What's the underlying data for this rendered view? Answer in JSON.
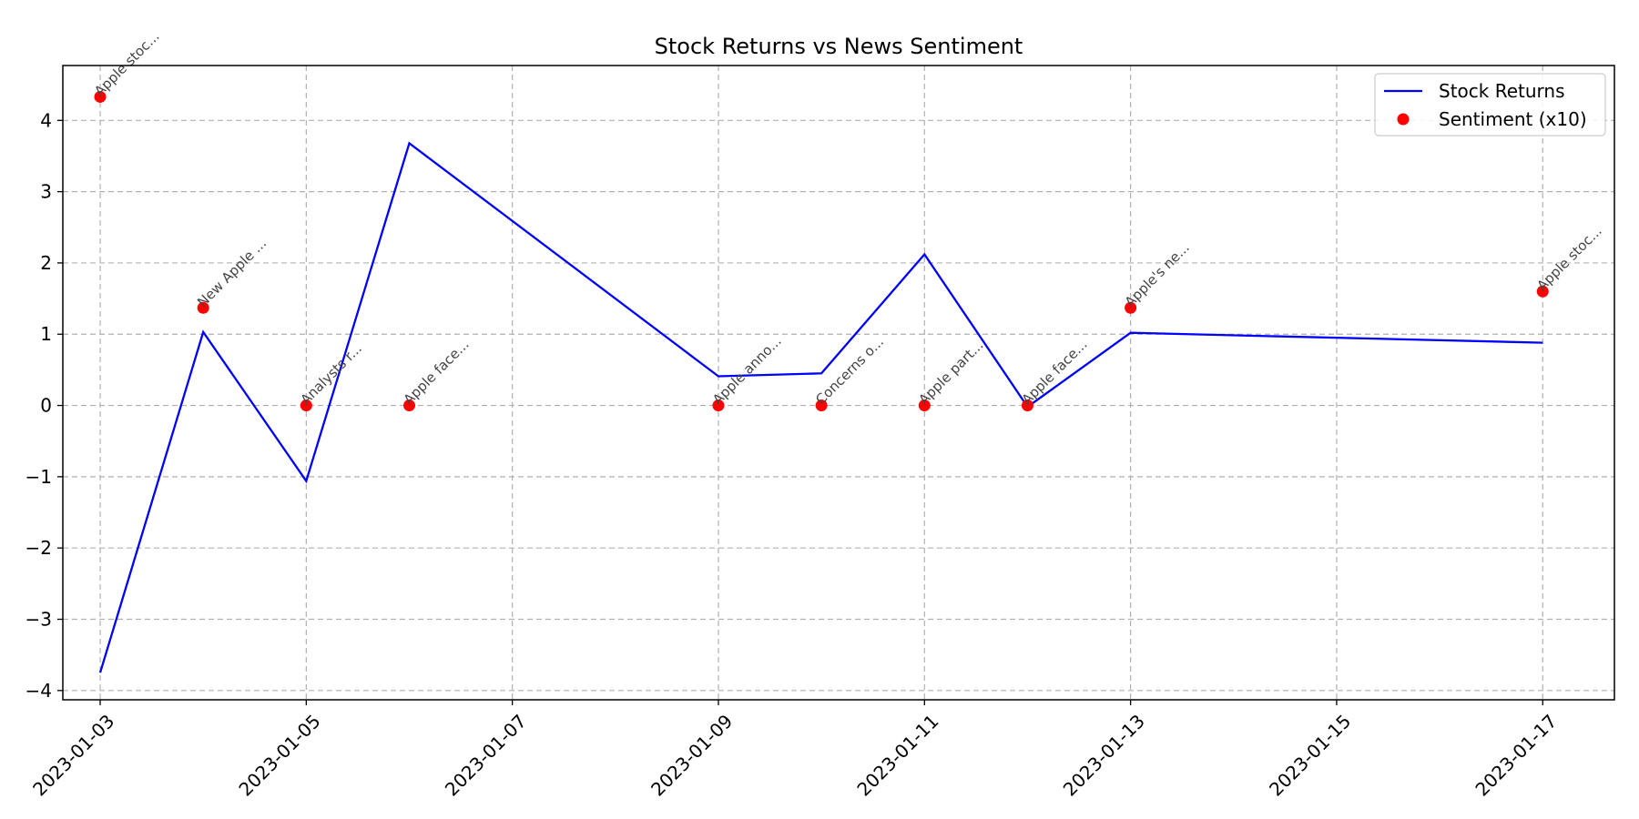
{
  "chart_data": {
    "type": "line",
    "title": "Stock Returns vs News Sentiment",
    "xlabel": "",
    "ylabel": "",
    "xlim": [
      "2023-01-02T15:18",
      "2023-01-17T16:42"
    ],
    "ylim": [
      -4.13,
      4.77
    ],
    "x_ticks": [
      "2023-01-03",
      "2023-01-05",
      "2023-01-07",
      "2023-01-09",
      "2023-01-11",
      "2023-01-13",
      "2023-01-15",
      "2023-01-17"
    ],
    "y_ticks": [
      -4,
      -3,
      -2,
      -1,
      0,
      1,
      2,
      3,
      4
    ],
    "grid": true,
    "legend": {
      "placement": "top-right"
    },
    "series": [
      {
        "name": "Stock Returns",
        "kind": "line",
        "color": "#0000ff",
        "points": [
          {
            "x": "2023-01-03",
            "y": -3.75
          },
          {
            "x": "2023-01-04",
            "y": 1.03
          },
          {
            "x": "2023-01-05",
            "y": -1.06
          },
          {
            "x": "2023-01-06",
            "y": 3.68
          },
          {
            "x": "2023-01-09",
            "y": 0.41
          },
          {
            "x": "2023-01-10",
            "y": 0.45
          },
          {
            "x": "2023-01-11",
            "y": 2.12
          },
          {
            "x": "2023-01-12",
            "y": -0.02
          },
          {
            "x": "2023-01-13",
            "y": 1.02
          },
          {
            "x": "2023-01-17",
            "y": 0.88
          }
        ]
      },
      {
        "name": "Sentiment (x10)",
        "kind": "scatter",
        "color": "#ff0000",
        "points": [
          {
            "x": "2023-01-03",
            "y": 4.33,
            "label": "Apple stoc..."
          },
          {
            "x": "2023-01-04",
            "y": 1.37,
            "label": "New Apple ..."
          },
          {
            "x": "2023-01-05",
            "y": 0.0,
            "label": "Analysts r..."
          },
          {
            "x": "2023-01-06",
            "y": 0.0,
            "label": "Apple face..."
          },
          {
            "x": "2023-01-09",
            "y": 0.0,
            "label": "Apple anno..."
          },
          {
            "x": "2023-01-10",
            "y": 0.0,
            "label": "Concerns o..."
          },
          {
            "x": "2023-01-11",
            "y": 0.0,
            "label": "Apple part..."
          },
          {
            "x": "2023-01-12",
            "y": 0.0,
            "label": "Apple face..."
          },
          {
            "x": "2023-01-13",
            "y": 1.37,
            "label": "Apple's ne..."
          },
          {
            "x": "2023-01-17",
            "y": 1.6,
            "label": "Apple stoc..."
          }
        ]
      }
    ]
  }
}
